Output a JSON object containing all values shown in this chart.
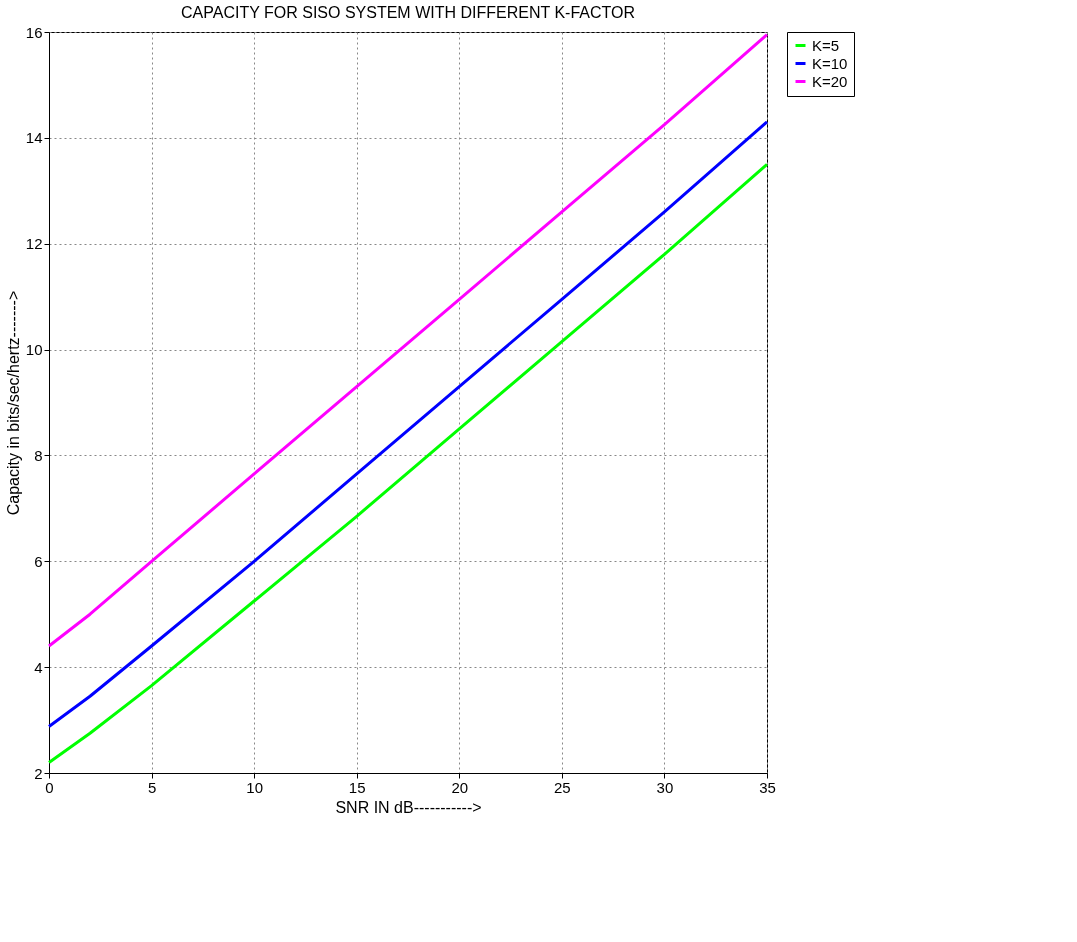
{
  "chart_data": {
    "type": "line",
    "title": "CAPACITY FOR SISO SYSTEM WITH DIFFERENT K-FACTOR",
    "xlabel": "SNR IN dB----------->",
    "ylabel": "Capacity in bits/sec/hertz------->",
    "x": [
      0,
      2,
      5,
      10,
      15,
      20,
      25,
      30,
      35
    ],
    "series": [
      {
        "name": "K=5",
        "color": "#00ff00",
        "values": [
          2.2,
          2.75,
          3.65,
          5.25,
          6.85,
          8.5,
          10.15,
          11.8,
          13.5
        ]
      },
      {
        "name": "K=10",
        "color": "#0000ff",
        "values": [
          2.88,
          3.45,
          4.4,
          6.0,
          7.65,
          9.3,
          10.95,
          12.6,
          14.3
        ]
      },
      {
        "name": " K=20",
        "color": "#ff00ff",
        "values": [
          4.4,
          5.0,
          6.0,
          7.65,
          9.3,
          10.95,
          12.6,
          14.25,
          15.95
        ]
      }
    ],
    "xlim": [
      0,
      35
    ],
    "xticks": [
      0,
      5,
      10,
      15,
      20,
      25,
      30,
      35
    ],
    "ylim": [
      2,
      16
    ],
    "yticks": [
      2,
      4,
      6,
      8,
      10,
      12,
      14,
      16
    ],
    "grid": true,
    "legend": "top right",
    "marker": "none",
    "line_style": "solid"
  }
}
